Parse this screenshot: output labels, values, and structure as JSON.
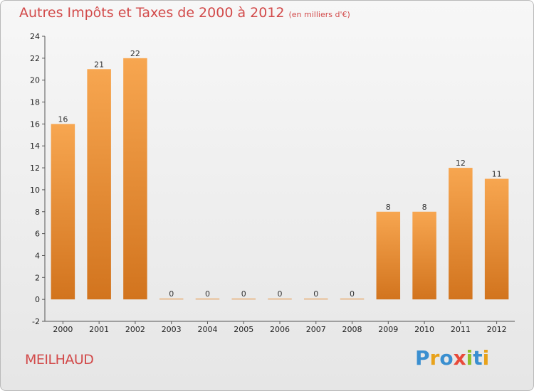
{
  "chart_data": {
    "type": "bar",
    "title": "Autres Impôts et Taxes de 2000 à 2012",
    "subtitle": "(en milliers d'€)",
    "categories": [
      "2000",
      "2001",
      "2002",
      "2003",
      "2004",
      "2005",
      "2006",
      "2007",
      "2008",
      "2009",
      "2010",
      "2011",
      "2012"
    ],
    "values": [
      16,
      21,
      22,
      0,
      0,
      0,
      0,
      0,
      0,
      8,
      8,
      12,
      11
    ],
    "data_labels": [
      "16",
      "21",
      "22",
      "0",
      "0",
      "0",
      "0",
      "0",
      "0",
      "8",
      "8",
      "12",
      "11"
    ],
    "ylim": [
      -2,
      24
    ],
    "yticks": [
      -2,
      0,
      2,
      4,
      6,
      8,
      10,
      12,
      14,
      16,
      18,
      20,
      22,
      24
    ],
    "grid": false,
    "legend": "none",
    "bar_color_top": "#f7a650",
    "bar_color_bottom": "#d2741e"
  },
  "footer": {
    "commune": "MEILHAUD",
    "logo_letters": [
      {
        "ch": "P",
        "color": "#3a8fd0"
      },
      {
        "ch": "r",
        "color": "#e8a21b"
      },
      {
        "ch": "o",
        "color": "#3a8fd0"
      },
      {
        "ch": "x",
        "color": "#e84a3a"
      },
      {
        "ch": "i",
        "color": "#8fbf2a"
      },
      {
        "ch": "t",
        "color": "#3a8fd0"
      },
      {
        "ch": "i",
        "color": "#e8a21b"
      }
    ]
  }
}
